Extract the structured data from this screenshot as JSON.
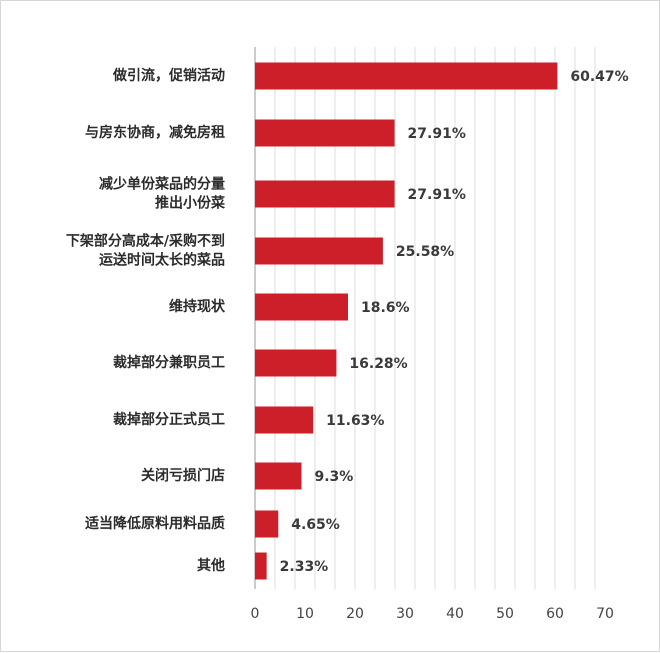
{
  "chart_data": {
    "type": "bar",
    "orientation": "horizontal",
    "categories": [
      [
        "做引流，促销活动"
      ],
      [
        "与房东协商，减免房租"
      ],
      [
        "减少单份菜品的分量",
        "推出小份菜"
      ],
      [
        "下架部分高成本/采购不到",
        "运送时间太长的菜品"
      ],
      [
        "维持现状"
      ],
      [
        "裁掉部分兼职员工"
      ],
      [
        "裁掉部分正式员工"
      ],
      [
        "关闭亏损门店"
      ],
      [
        "适当降低原料用料品质"
      ],
      [
        "其他"
      ]
    ],
    "values": [
      60.47,
      27.91,
      27.91,
      25.58,
      18.6,
      16.28,
      11.63,
      9.3,
      4.65,
      2.33
    ],
    "value_labels": [
      "60.47%",
      "27.91%",
      "27.91%",
      "25.58%",
      "18.6%",
      "16.28%",
      "11.63%",
      "9.3%",
      "4.65%",
      "2.33%"
    ],
    "xlim": [
      0,
      70
    ],
    "xticks": [
      0,
      10,
      20,
      30,
      40,
      50,
      60,
      70
    ],
    "grid": true,
    "bar_color": "#cc1f2a",
    "grid_color": "#dcdcdc"
  }
}
